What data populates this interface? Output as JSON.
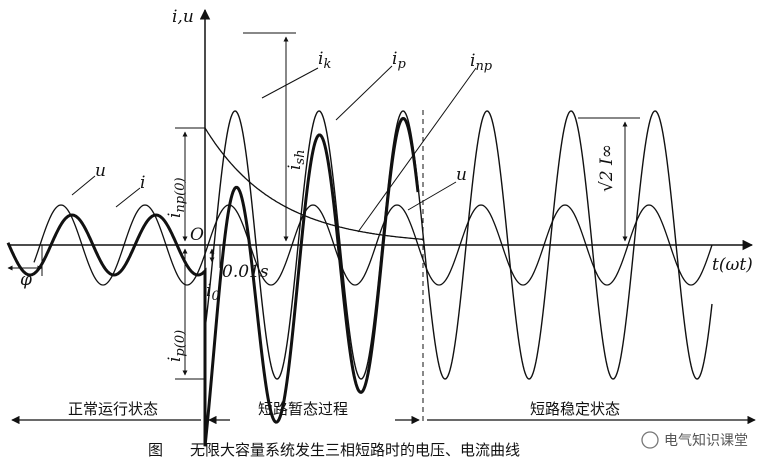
{
  "labels": {
    "y_axis": "i,u",
    "x_axis": "t(ωt)",
    "origin": "O",
    "ik": "i",
    "ik_sub": "k",
    "ip": "i",
    "ip_sub": "p",
    "inp": "i",
    "inp_sub": "np",
    "u_left": "u",
    "i_left": "i",
    "u_right": "u",
    "ish": "i",
    "ish_sub": "sh",
    "inp0": "i",
    "inp0_sub": "np(0)",
    "ip0": "i",
    "ip0_sub": "p(0)",
    "i0": "i",
    "i0_sub": "0",
    "phi": "φ",
    "time_001": "0.01s",
    "iinf": "√2 I∞"
  },
  "sections": {
    "normal": "正常运行状态",
    "transient": "短路暂态过程",
    "steady": "短路稳定状态"
  },
  "caption": {
    "fig": "图",
    "text": "无限大容量系统发生三相短路时的电压、电流曲线"
  },
  "watermark": "电气知识课堂",
  "colors": {
    "ink": "#111111",
    "background": "#ffffff",
    "watermark": "#555555"
  }
}
